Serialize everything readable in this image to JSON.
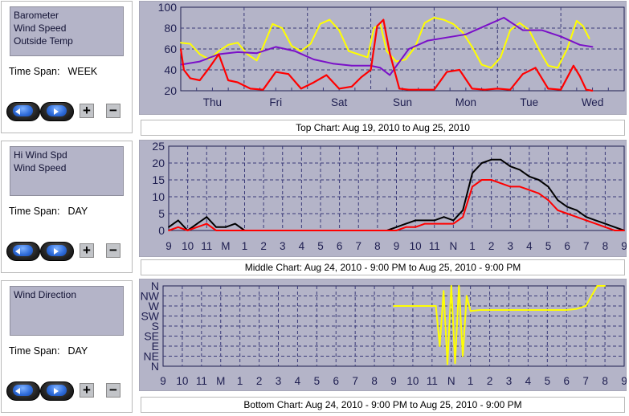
{
  "panels": [
    {
      "series_list": [
        "Barometer",
        "Wind Speed",
        "Outside Temp"
      ],
      "time_span_label": "Time Span:",
      "time_span_value": "WEEK",
      "plus_label": "+",
      "minus_label": "−"
    },
    {
      "series_list": [
        "Hi Wind Spd",
        "Wind Speed"
      ],
      "time_span_label": "Time Span:",
      "time_span_value": "DAY",
      "plus_label": "+",
      "minus_label": "−"
    },
    {
      "series_list": [
        "Wind Direction"
      ],
      "time_span_label": "Time Span:",
      "time_span_value": "DAY",
      "plus_label": "+",
      "minus_label": "−"
    }
  ],
  "captions": [
    "Top Chart:  Aug 19, 2010  to  Aug 25, 2010",
    "Middle Chart:  Aug 24, 2010 - 9:00 PM  to  Aug 25, 2010 - 9:00 PM",
    "Bottom Chart:  Aug 24, 2010 - 9:00 PM  to  Aug 25, 2010 - 9:00 PM"
  ],
  "colors": {
    "plot_bg": "#b4b4c8",
    "grid": "#3a3a78",
    "barometer": "#7a10c8",
    "wind_speed": "#ff0000",
    "outside_temp": "#ffff00",
    "hi_wind": "#000000",
    "wind_direction": "#ffff00"
  },
  "chart_data": [
    {
      "type": "line",
      "ylim": [
        20,
        100
      ],
      "yticks": [
        20,
        40,
        60,
        80,
        100
      ],
      "xlim": [
        0,
        7
      ],
      "categories": [
        "Thu",
        "Fri",
        "Sat",
        "Sun",
        "Mon",
        "Tue",
        "Wed"
      ],
      "grid": true,
      "series": [
        {
          "color": "#ffff00",
          "x": [
            0,
            0.15,
            0.3,
            0.45,
            0.6,
            0.75,
            0.9,
            1.05,
            1.2,
            1.3,
            1.45,
            1.6,
            1.75,
            1.9,
            2.05,
            2.2,
            2.35,
            2.5,
            2.65,
            2.8,
            2.95,
            3.05,
            3.15,
            3.25,
            3.4,
            3.55,
            3.7,
            3.85,
            4.0,
            4.15,
            4.3,
            4.45,
            4.6,
            4.75,
            4.9,
            5.05,
            5.2,
            5.35,
            5.5,
            5.65,
            5.8,
            5.95,
            6.1,
            6.25,
            6.35,
            6.45
          ],
          "values": [
            66,
            65,
            55,
            50,
            58,
            64,
            66,
            55,
            49,
            62,
            84,
            80,
            63,
            58,
            65,
            84,
            88,
            78,
            58,
            55,
            52,
            80,
            84,
            58,
            48,
            50,
            62,
            85,
            90,
            88,
            84,
            76,
            62,
            45,
            42,
            52,
            78,
            85,
            78,
            60,
            44,
            42,
            60,
            87,
            82,
            70
          ]
        },
        {
          "color": "#7a10c8",
          "x": [
            0,
            0.3,
            0.6,
            0.9,
            1.2,
            1.5,
            1.8,
            2.1,
            2.4,
            2.7,
            3.0,
            3.15,
            3.3,
            3.6,
            3.9,
            4.2,
            4.5,
            4.8,
            5.1,
            5.4,
            5.7,
            6.0,
            6.3,
            6.5
          ],
          "values": [
            45,
            48,
            55,
            57,
            56,
            62,
            58,
            50,
            46,
            44,
            44,
            42,
            35,
            60,
            68,
            71,
            74,
            82,
            90,
            78,
            78,
            72,
            64,
            62
          ]
        },
        {
          "color": "#ff0000",
          "x": [
            0,
            0.05,
            0.15,
            0.3,
            0.45,
            0.6,
            0.75,
            0.9,
            1.1,
            1.3,
            1.5,
            1.7,
            1.9,
            2.1,
            2.3,
            2.5,
            2.7,
            2.85,
            3.0,
            3.1,
            3.2,
            3.3,
            3.45,
            3.6,
            3.8,
            4.0,
            4.2,
            4.4,
            4.6,
            4.8,
            5.0,
            5.2,
            5.4,
            5.6,
            5.8,
            6.0,
            6.2,
            6.3,
            6.4,
            6.5
          ],
          "values": [
            60,
            40,
            32,
            30,
            42,
            55,
            30,
            28,
            22,
            21,
            38,
            36,
            22,
            28,
            35,
            22,
            24,
            33,
            40,
            82,
            88,
            56,
            22,
            21,
            21,
            21,
            38,
            40,
            22,
            21,
            22,
            21,
            36,
            42,
            22,
            21,
            44,
            34,
            21,
            20
          ]
        }
      ]
    },
    {
      "type": "line",
      "ylim": [
        0,
        25
      ],
      "yticks": [
        0,
        5,
        10,
        15,
        20,
        25
      ],
      "xlim": [
        0,
        24
      ],
      "categories": [
        "9",
        "10",
        "11",
        "M",
        "1",
        "2",
        "3",
        "4",
        "5",
        "6",
        "7",
        "8",
        "9",
        "10",
        "11",
        "N",
        "1",
        "2",
        "3",
        "4",
        "5",
        "6",
        "7",
        "8",
        "9"
      ],
      "grid": true,
      "series": [
        {
          "color": "#000000",
          "x": [
            0,
            0.5,
            1,
            1.5,
            2,
            2.5,
            3,
            3.5,
            4,
            5,
            6,
            7,
            8,
            9,
            10,
            11,
            11.5,
            12,
            12.5,
            13,
            13.5,
            14,
            14.5,
            15,
            15.5,
            16,
            16.5,
            17,
            17.5,
            18,
            18.5,
            19,
            19.5,
            20,
            20.5,
            21,
            21.5,
            22,
            22.5,
            23,
            23.5,
            24
          ],
          "values": [
            1,
            3,
            0,
            2,
            4,
            1,
            1,
            2,
            0,
            0,
            0,
            0,
            0,
            0,
            0,
            0,
            0,
            1,
            2,
            3,
            3,
            3,
            4,
            3,
            6,
            17,
            20,
            21,
            21,
            19,
            18,
            16,
            15,
            13,
            9,
            7,
            6,
            4,
            3,
            2,
            1,
            0
          ]
        },
        {
          "color": "#ff0000",
          "x": [
            0,
            0.5,
            1,
            1.5,
            2,
            2.5,
            3,
            4,
            5,
            6,
            7,
            8,
            9,
            10,
            11,
            11.5,
            12,
            12.5,
            13,
            13.5,
            14,
            14.5,
            15,
            15.5,
            16,
            16.5,
            17,
            17.5,
            18,
            18.5,
            19,
            19.5,
            20,
            20.5,
            21,
            21.5,
            22,
            22.5,
            23,
            23.5,
            24
          ],
          "values": [
            0,
            1,
            0,
            1,
            2,
            0,
            0,
            0,
            0,
            0,
            0,
            0,
            0,
            0,
            0,
            0,
            0,
            1,
            1,
            2,
            2,
            2,
            2,
            4,
            13,
            15,
            15,
            14,
            13,
            13,
            12,
            11,
            9,
            6,
            5,
            4,
            3,
            2,
            1,
            0,
            0
          ]
        }
      ]
    },
    {
      "type": "line",
      "ylim": [
        0,
        8
      ],
      "yticks_labels": [
        "N",
        "NE",
        "E",
        "SE",
        "S",
        "SW",
        "W",
        "NW",
        "N"
      ],
      "xlim": [
        0,
        24
      ],
      "categories": [
        "9",
        "10",
        "11",
        "M",
        "1",
        "2",
        "3",
        "4",
        "5",
        "6",
        "7",
        "8",
        "9",
        "10",
        "11",
        "N",
        "1",
        "2",
        "3",
        "4",
        "5",
        "6",
        "7",
        "8",
        "9"
      ],
      "grid": true,
      "series": [
        {
          "color": "#ffff00",
          "x": [
            12,
            13.5,
            14.2,
            14.4,
            14.6,
            14.8,
            15.0,
            15.2,
            15.4,
            15.6,
            15.8,
            16.0,
            16.5,
            17,
            18,
            19,
            20,
            21,
            21.5,
            22,
            22.3,
            22.6,
            23
          ],
          "values": [
            6,
            6,
            6,
            2,
            7.5,
            0.2,
            8,
            0.3,
            8,
            1,
            7,
            5.5,
            5.6,
            5.6,
            5.6,
            5.6,
            5.6,
            5.6,
            5.7,
            6,
            7,
            8,
            8
          ]
        }
      ]
    }
  ]
}
